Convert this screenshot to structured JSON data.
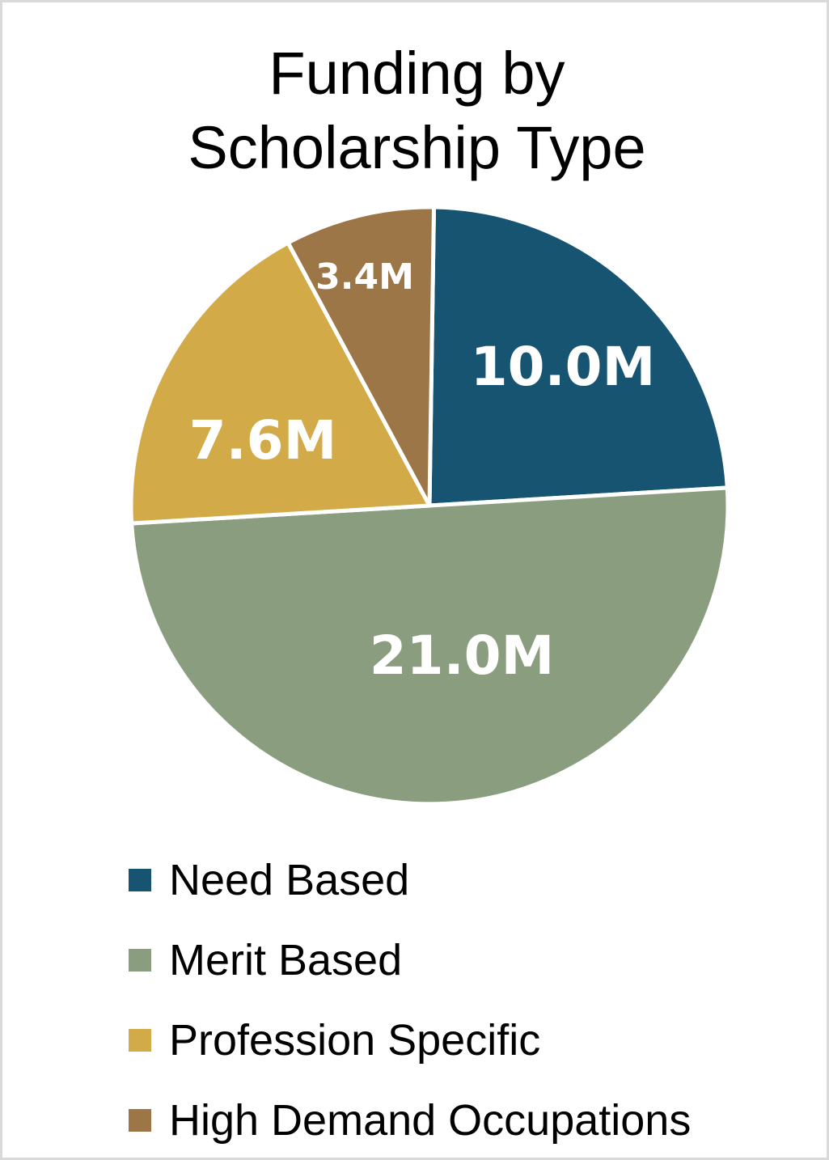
{
  "chart_data": {
    "type": "pie",
    "title": "Funding by Scholarship Type",
    "title_lines": [
      "Funding by",
      "Scholarship Type"
    ],
    "categories": [
      "Need Based",
      "Merit Based",
      "Profession Specific",
      "High Demand Occupations"
    ],
    "values": [
      10.0,
      21.0,
      7.6,
      3.4
    ],
    "value_labels": [
      "10.0M",
      "21.0M",
      "7.6M",
      "3.4M"
    ],
    "unit": "M",
    "colors": [
      "#175472",
      "#8a9e7f",
      "#d2aa47",
      "#9c7647"
    ],
    "start_angle": "12 o'clock",
    "direction": "clockwise",
    "legend_position": "bottom"
  }
}
